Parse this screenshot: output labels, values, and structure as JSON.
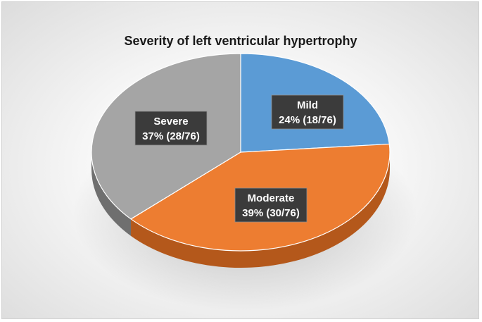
{
  "chart_data": {
    "type": "pie",
    "title": "Severity of left ventricular hypertrophy",
    "style": "3d",
    "legend": "none",
    "slices": [
      {
        "label": "Mild",
        "value": 18,
        "total": 76,
        "percent_text": "24% (18/76)",
        "color": "#5b9bd5",
        "side_color": "#3d6e9e"
      },
      {
        "label": "Moderate",
        "value": 30,
        "total": 76,
        "percent_text": "39% (30/76)",
        "color": "#ed7d31",
        "side_color": "#b4581b"
      },
      {
        "label": "Severe",
        "value": 28,
        "total": 76,
        "percent_text": "37% (28/76)",
        "color": "#a5a5a5",
        "side_color": "#6f6f6f"
      }
    ]
  }
}
